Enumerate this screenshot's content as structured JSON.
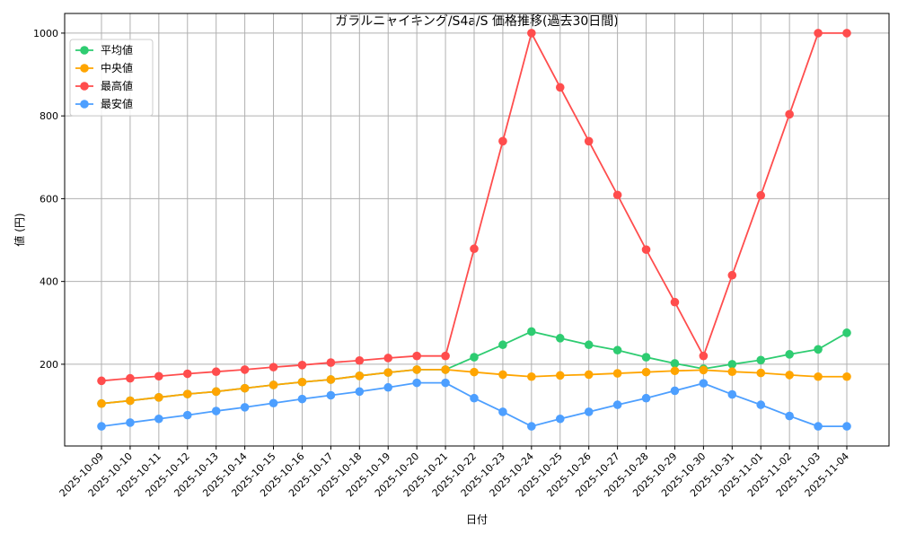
{
  "chart_data": {
    "type": "line",
    "title": "ガラルニャイキング/S4a/S 価格推移(過去30日間)",
    "xlabel": "日付",
    "ylabel": "値 (円)",
    "grid": true,
    "legend_position": "top-left",
    "ylim": [
      2.5,
      1047.5
    ],
    "yticks": [
      200,
      400,
      600,
      800,
      1000
    ],
    "x": [
      "2025-10-09",
      "2025-10-10",
      "2025-10-11",
      "2025-10-12",
      "2025-10-13",
      "2025-10-14",
      "2025-10-15",
      "2025-10-16",
      "2025-10-17",
      "2025-10-18",
      "2025-10-19",
      "2025-10-20",
      "2025-10-21",
      "2025-10-22",
      "2025-10-23",
      "2025-10-24",
      "2025-10-25",
      "2025-10-26",
      "2025-10-27",
      "2025-10-28",
      "2025-10-29",
      "2025-10-30",
      "2025-10-31",
      "2025-11-01",
      "2025-11-02",
      "2025-11-03",
      "2025-11-04"
    ],
    "series": [
      {
        "name": "平均値",
        "color": "#2ecc71",
        "values": [
          105,
          112,
          120,
          128,
          134,
          142,
          150,
          157,
          163,
          172,
          180,
          187,
          187,
          217,
          247,
          279,
          263,
          247,
          234,
          217,
          202,
          189,
          200,
          210,
          224,
          236,
          276
        ]
      },
      {
        "name": "中央値",
        "color": "#ffa500",
        "values": [
          105,
          112,
          120,
          128,
          134,
          142,
          150,
          157,
          163,
          172,
          180,
          187,
          187,
          181,
          175,
          170,
          173,
          175,
          178,
          181,
          184,
          186,
          182,
          179,
          174,
          170,
          170
        ]
      },
      {
        "name": "最高値",
        "color": "#ff4d4d",
        "values": [
          160,
          166,
          171,
          177,
          182,
          187,
          193,
          198,
          204,
          209,
          215,
          220,
          220,
          479,
          739,
          1000,
          869,
          739,
          609,
          477,
          350,
          220,
          415,
          608,
          804,
          1000,
          1000
        ]
      },
      {
        "name": "最安値",
        "color": "#4d9fff",
        "values": [
          50,
          59,
          68,
          77,
          87,
          96,
          106,
          116,
          125,
          134,
          144,
          155,
          155,
          118,
          85,
          50,
          68,
          85,
          102,
          118,
          136,
          154,
          127,
          102,
          75,
          50,
          50
        ]
      }
    ]
  }
}
